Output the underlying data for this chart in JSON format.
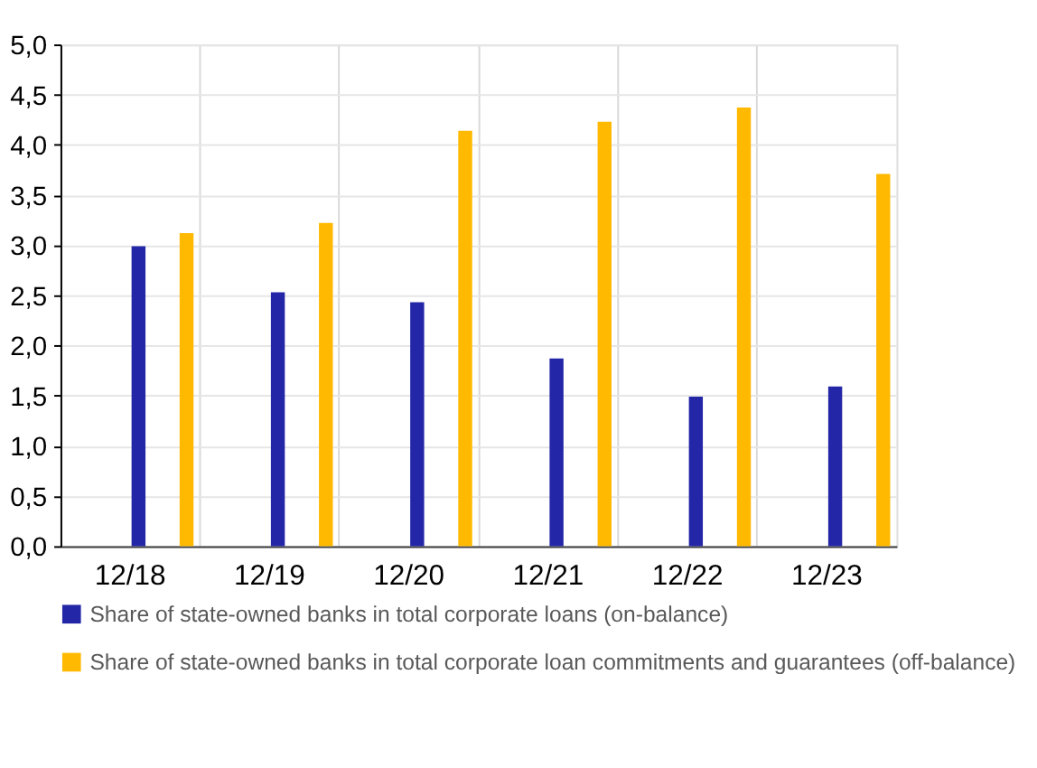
{
  "chart_data": {
    "type": "bar",
    "categories": [
      "12/18",
      "12/19",
      "12/20",
      "12/21",
      "12/22",
      "12/23"
    ],
    "series": [
      {
        "name": "Share of state-owned banks in total corporate loans (on-balance)",
        "color": "#2326a6",
        "values": [
          2.99,
          2.53,
          2.43,
          1.87,
          1.49,
          1.59
        ]
      },
      {
        "name": "Share of state-owned banks in total corporate loan commitments and guarantees  (off-balance)",
        "color": "#ffb900",
        "values": [
          3.12,
          3.22,
          4.14,
          4.23,
          4.37,
          3.71
        ]
      }
    ],
    "ylim": [
      0,
      5
    ],
    "yticks": [
      {
        "value": 0,
        "label": "0,0"
      },
      {
        "value": 0.5,
        "label": "0,5"
      },
      {
        "value": 1,
        "label": "1,0"
      },
      {
        "value": 1.5,
        "label": "1,5"
      },
      {
        "value": 2,
        "label": "2,0"
      },
      {
        "value": 2.5,
        "label": "2,5"
      },
      {
        "value": 3,
        "label": "3,0"
      },
      {
        "value": 3.5,
        "label": "3,5"
      },
      {
        "value": 4,
        "label": "4,0"
      },
      {
        "value": 4.5,
        "label": "4,5"
      },
      {
        "value": 5,
        "label": "5,0"
      }
    ],
    "grid": true,
    "legend": "bottom"
  }
}
